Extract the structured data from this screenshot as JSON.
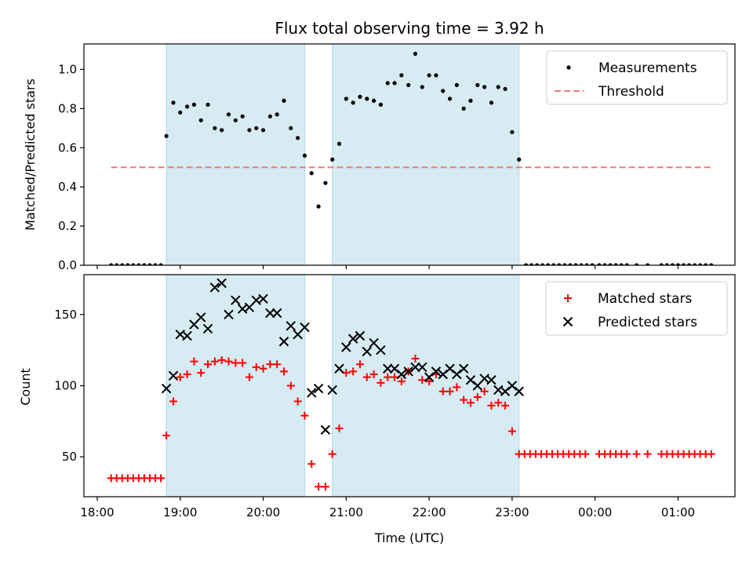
{
  "chart_data": [
    {
      "type": "scatter",
      "title": "Flux total observing time = 3.92 h",
      "xlabel": "",
      "ylabel": "Matched/Predicted stars",
      "ylim": [
        0,
        1.13
      ],
      "yticks": [
        "0.0",
        "0.2",
        "0.4",
        "0.6",
        "0.8",
        "1.0"
      ],
      "shaded_intervals": [
        [
          "18:50",
          "20:30"
        ],
        [
          "20:50",
          "23:05"
        ]
      ],
      "legend": {
        "position": "top-right",
        "entries": [
          "Measurements",
          "Threshold"
        ]
      },
      "series": [
        {
          "name": "Measurements",
          "marker": "dot",
          "color": "#000000",
          "points": [
            [
              "18:10",
              0
            ],
            [
              "18:14",
              0
            ],
            [
              "18:18",
              0
            ],
            [
              "18:22",
              0
            ],
            [
              "18:26",
              0
            ],
            [
              "18:30",
              0
            ],
            [
              "18:34",
              0
            ],
            [
              "18:38",
              0
            ],
            [
              "18:42",
              0
            ],
            [
              "18:46",
              0
            ],
            [
              "18:50",
              0.66
            ],
            [
              "18:55",
              0.83
            ],
            [
              "19:00",
              0.78
            ],
            [
              "19:05",
              0.81
            ],
            [
              "19:10",
              0.82
            ],
            [
              "19:15",
              0.74
            ],
            [
              "19:20",
              0.82
            ],
            [
              "19:25",
              0.7
            ],
            [
              "19:30",
              0.69
            ],
            [
              "19:35",
              0.77
            ],
            [
              "19:40",
              0.74
            ],
            [
              "19:45",
              0.76
            ],
            [
              "19:50",
              0.69
            ],
            [
              "19:55",
              0.7
            ],
            [
              "20:00",
              0.69
            ],
            [
              "20:05",
              0.76
            ],
            [
              "20:10",
              0.77
            ],
            [
              "20:15",
              0.84
            ],
            [
              "20:20",
              0.7
            ],
            [
              "20:25",
              0.65
            ],
            [
              "20:30",
              0.56
            ],
            [
              "20:35",
              0.47
            ],
            [
              "20:40",
              0.3
            ],
            [
              "20:45",
              0.42
            ],
            [
              "20:50",
              0.54
            ],
            [
              "20:55",
              0.62
            ],
            [
              "21:00",
              0.85
            ],
            [
              "21:05",
              0.83
            ],
            [
              "21:10",
              0.86
            ],
            [
              "21:15",
              0.85
            ],
            [
              "21:20",
              0.84
            ],
            [
              "21:25",
              0.82
            ],
            [
              "21:30",
              0.93
            ],
            [
              "21:35",
              0.93
            ],
            [
              "21:40",
              0.97
            ],
            [
              "21:45",
              0.92
            ],
            [
              "21:50",
              1.08
            ],
            [
              "21:55",
              0.91
            ],
            [
              "22:00",
              0.97
            ],
            [
              "22:05",
              0.97
            ],
            [
              "22:10",
              0.89
            ],
            [
              "22:15",
              0.85
            ],
            [
              "22:20",
              0.92
            ],
            [
              "22:25",
              0.8
            ],
            [
              "22:30",
              0.84
            ],
            [
              "22:35",
              0.92
            ],
            [
              "22:40",
              0.91
            ],
            [
              "22:45",
              0.83
            ],
            [
              "22:50",
              0.91
            ],
            [
              "22:55",
              0.9
            ],
            [
              "23:00",
              0.68
            ],
            [
              "23:05",
              0.54
            ],
            [
              "23:10",
              0
            ],
            [
              "23:14",
              0
            ],
            [
              "23:18",
              0
            ],
            [
              "23:22",
              0
            ],
            [
              "23:26",
              0
            ],
            [
              "23:30",
              0
            ],
            [
              "23:34",
              0
            ],
            [
              "23:38",
              0
            ],
            [
              "23:42",
              0
            ],
            [
              "23:46",
              0
            ],
            [
              "23:50",
              0
            ],
            [
              "23:54",
              0
            ],
            [
              "23:58",
              0
            ],
            [
              "00:03",
              0
            ],
            [
              "00:07",
              0
            ],
            [
              "00:11",
              0
            ],
            [
              "00:15",
              0
            ],
            [
              "00:19",
              0
            ],
            [
              "00:23",
              0
            ],
            [
              "00:30",
              0
            ],
            [
              "00:38",
              0
            ],
            [
              "00:48",
              0
            ],
            [
              "00:52",
              0
            ],
            [
              "00:56",
              0
            ],
            [
              "01:00",
              0
            ],
            [
              "01:04",
              0
            ],
            [
              "01:08",
              0
            ],
            [
              "01:12",
              0
            ],
            [
              "01:16",
              0
            ],
            [
              "01:20",
              0
            ],
            [
              "01:24",
              0
            ]
          ]
        },
        {
          "name": "Threshold",
          "marker": "dashed-line",
          "color": "#f07b7b",
          "points": [
            [
              "18:10",
              0.5
            ],
            [
              "01:25",
              0.5
            ]
          ]
        }
      ]
    },
    {
      "type": "scatter",
      "title": "",
      "xlabel": "Time (UTC)",
      "ylabel": "Count",
      "ylim": [
        22,
        178
      ],
      "yticks": [
        "50",
        "100",
        "150"
      ],
      "xticks": [
        "18:00",
        "19:00",
        "20:00",
        "21:00",
        "22:00",
        "23:00",
        "00:00",
        "01:00"
      ],
      "shaded_intervals": [
        [
          "18:50",
          "20:30"
        ],
        [
          "20:50",
          "23:05"
        ]
      ],
      "legend": {
        "position": "top-right",
        "entries": [
          "Matched stars",
          "Predicted stars"
        ]
      },
      "series": [
        {
          "name": "Matched stars",
          "marker": "plus",
          "color": "#ff0000",
          "points": [
            [
              "18:10",
              35
            ],
            [
              "18:14",
              35
            ],
            [
              "18:18",
              35
            ],
            [
              "18:22",
              35
            ],
            [
              "18:26",
              35
            ],
            [
              "18:30",
              35
            ],
            [
              "18:34",
              35
            ],
            [
              "18:38",
              35
            ],
            [
              "18:42",
              35
            ],
            [
              "18:46",
              35
            ],
            [
              "18:50",
              65
            ],
            [
              "18:55",
              89
            ],
            [
              "19:00",
              106
            ],
            [
              "19:05",
              108
            ],
            [
              "19:10",
              117
            ],
            [
              "19:15",
              109
            ],
            [
              "19:20",
              115
            ],
            [
              "19:25",
              117
            ],
            [
              "19:30",
              118
            ],
            [
              "19:35",
              117
            ],
            [
              "19:40",
              116
            ],
            [
              "19:45",
              116
            ],
            [
              "19:50",
              106
            ],
            [
              "19:55",
              113
            ],
            [
              "20:00",
              112
            ],
            [
              "20:05",
              115
            ],
            [
              "20:10",
              115
            ],
            [
              "20:15",
              110
            ],
            [
              "20:20",
              100
            ],
            [
              "20:25",
              89
            ],
            [
              "20:30",
              79
            ],
            [
              "20:35",
              45
            ],
            [
              "20:40",
              29
            ],
            [
              "20:45",
              29
            ],
            [
              "20:50",
              52
            ],
            [
              "20:55",
              70
            ],
            [
              "21:00",
              109
            ],
            [
              "21:05",
              110
            ],
            [
              "21:10",
              115
            ],
            [
              "21:15",
              106
            ],
            [
              "21:20",
              108
            ],
            [
              "21:25",
              102
            ],
            [
              "21:30",
              106
            ],
            [
              "21:35",
              106
            ],
            [
              "21:40",
              103
            ],
            [
              "21:45",
              110
            ],
            [
              "21:50",
              119
            ],
            [
              "21:55",
              104
            ],
            [
              "22:00",
              103
            ],
            [
              "22:05",
              108
            ],
            [
              "22:10",
              96
            ],
            [
              "22:15",
              96
            ],
            [
              "22:20",
              99
            ],
            [
              "22:25",
              90
            ],
            [
              "22:30",
              88
            ],
            [
              "22:35",
              92
            ],
            [
              "22:40",
              96
            ],
            [
              "22:45",
              86
            ],
            [
              "22:50",
              88
            ],
            [
              "22:55",
              86
            ],
            [
              "23:00",
              68
            ],
            [
              "23:05",
              52
            ],
            [
              "23:09",
              52
            ],
            [
              "23:13",
              52
            ],
            [
              "23:17",
              52
            ],
            [
              "23:21",
              52
            ],
            [
              "23:25",
              52
            ],
            [
              "23:29",
              52
            ],
            [
              "23:33",
              52
            ],
            [
              "23:37",
              52
            ],
            [
              "23:41",
              52
            ],
            [
              "23:45",
              52
            ],
            [
              "23:49",
              52
            ],
            [
              "23:53",
              52
            ],
            [
              "00:03",
              52
            ],
            [
              "00:07",
              52
            ],
            [
              "00:11",
              52
            ],
            [
              "00:15",
              52
            ],
            [
              "00:19",
              52
            ],
            [
              "00:23",
              52
            ],
            [
              "00:30",
              52
            ],
            [
              "00:38",
              52
            ],
            [
              "00:48",
              52
            ],
            [
              "00:52",
              52
            ],
            [
              "00:56",
              52
            ],
            [
              "01:00",
              52
            ],
            [
              "01:04",
              52
            ],
            [
              "01:08",
              52
            ],
            [
              "01:12",
              52
            ],
            [
              "01:16",
              52
            ],
            [
              "01:20",
              52
            ],
            [
              "01:24",
              52
            ]
          ]
        },
        {
          "name": "Predicted stars",
          "marker": "x",
          "color": "#000000",
          "points": [
            [
              "18:50",
              98
            ],
            [
              "18:55",
              107
            ],
            [
              "19:00",
              136
            ],
            [
              "19:05",
              135
            ],
            [
              "19:10",
              143
            ],
            [
              "19:15",
              148
            ],
            [
              "19:20",
              140
            ],
            [
              "19:25",
              169
            ],
            [
              "19:30",
              172
            ],
            [
              "19:35",
              150
            ],
            [
              "19:40",
              160
            ],
            [
              "19:45",
              154
            ],
            [
              "19:50",
              155
            ],
            [
              "19:55",
              160
            ],
            [
              "20:00",
              161
            ],
            [
              "20:05",
              151
            ],
            [
              "20:10",
              151
            ],
            [
              "20:15",
              131
            ],
            [
              "20:20",
              142
            ],
            [
              "20:25",
              136
            ],
            [
              "20:30",
              141
            ],
            [
              "20:35",
              95
            ],
            [
              "20:40",
              98
            ],
            [
              "20:45",
              69
            ],
            [
              "20:50",
              97
            ],
            [
              "20:55",
              112
            ],
            [
              "21:00",
              127
            ],
            [
              "21:05",
              133
            ],
            [
              "21:10",
              135
            ],
            [
              "21:15",
              124
            ],
            [
              "21:20",
              130
            ],
            [
              "21:25",
              125
            ],
            [
              "21:30",
              112
            ],
            [
              "21:35",
              112
            ],
            [
              "21:40",
              108
            ],
            [
              "21:45",
              110
            ],
            [
              "21:50",
              113
            ],
            [
              "21:55",
              113
            ],
            [
              "22:00",
              106
            ],
            [
              "22:05",
              110
            ],
            [
              "22:10",
              108
            ],
            [
              "22:15",
              112
            ],
            [
              "22:20",
              108
            ],
            [
              "22:25",
              112
            ],
            [
              "22:30",
              104
            ],
            [
              "22:35",
              100
            ],
            [
              "22:40",
              105
            ],
            [
              "22:45",
              104
            ],
            [
              "22:50",
              97
            ],
            [
              "22:55",
              96
            ],
            [
              "23:00",
              100
            ],
            [
              "23:05",
              96
            ]
          ]
        }
      ]
    }
  ]
}
